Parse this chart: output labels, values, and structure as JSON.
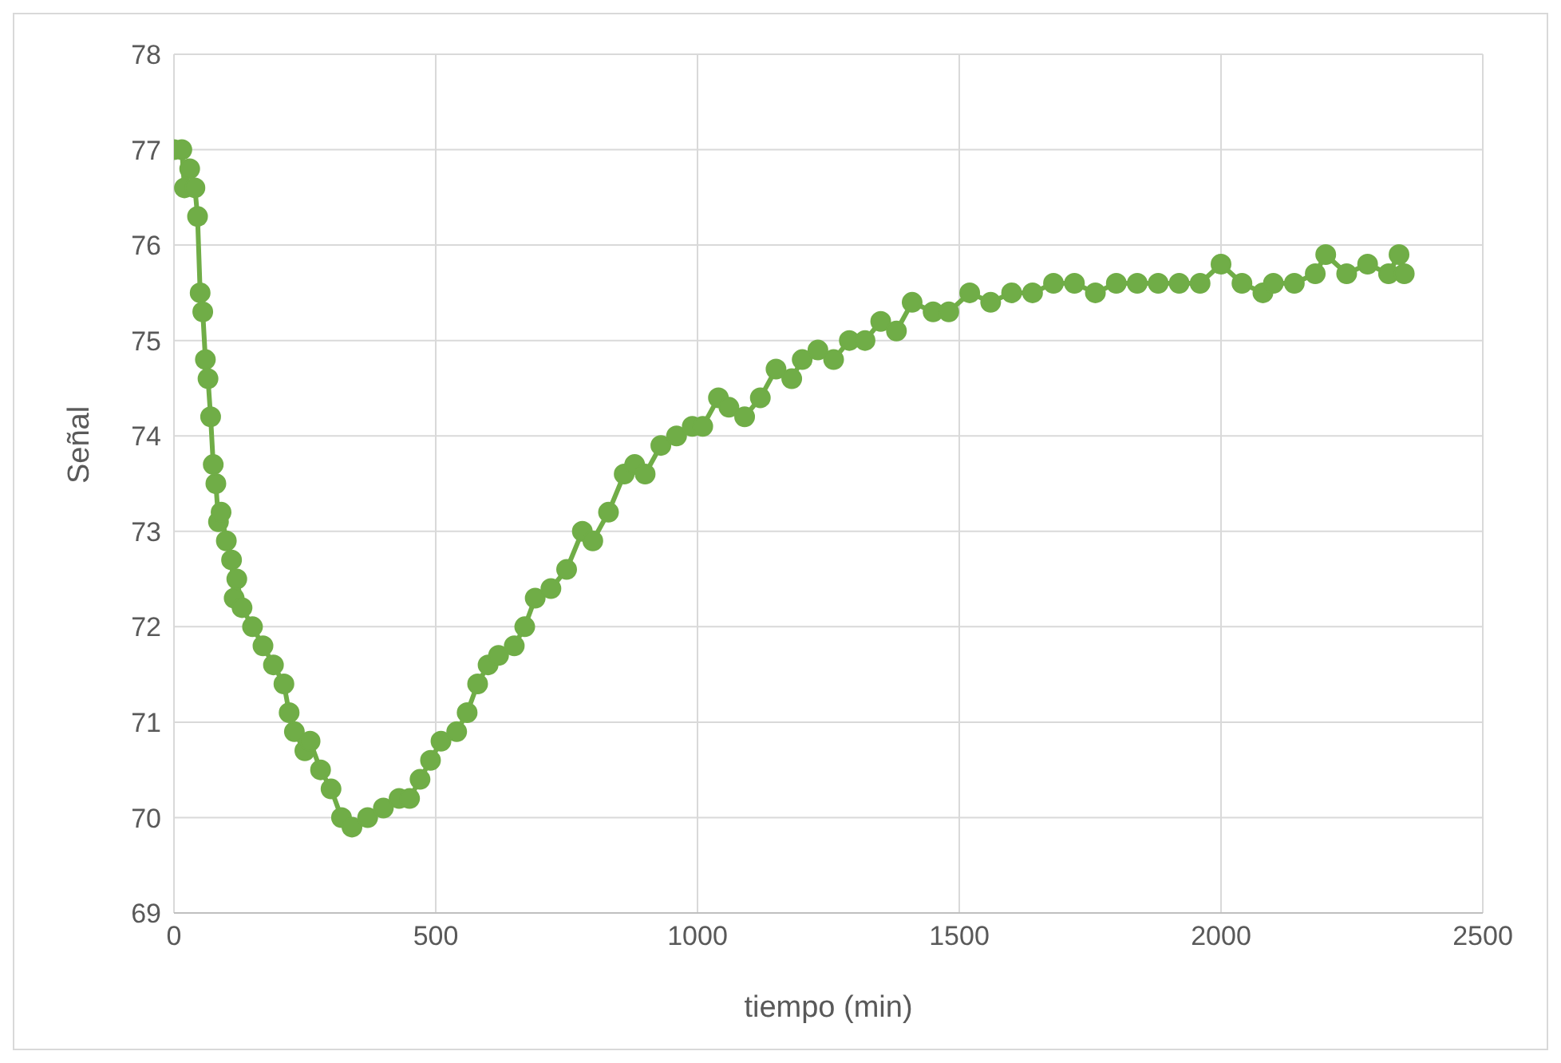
{
  "chart_data": {
    "type": "line",
    "xlabel": "tiempo (min)",
    "ylabel": "Señal",
    "marker": "circle",
    "line_style": "solid",
    "grid": true,
    "legend": false,
    "xlim": [
      0,
      2500
    ],
    "xticks": [
      0,
      500,
      1000,
      1500,
      2000,
      2500
    ],
    "ylim": [
      69,
      78
    ],
    "yticks": [
      69,
      70,
      71,
      72,
      73,
      74,
      75,
      76,
      77,
      78
    ],
    "x": [
      0,
      15,
      20,
      30,
      40,
      45,
      50,
      55,
      60,
      65,
      70,
      75,
      80,
      85,
      90,
      100,
      110,
      115,
      120,
      130,
      150,
      170,
      190,
      210,
      220,
      230,
      250,
      260,
      280,
      300,
      320,
      340,
      370,
      400,
      430,
      450,
      470,
      490,
      510,
      540,
      560,
      580,
      600,
      620,
      650,
      670,
      690,
      720,
      750,
      780,
      800,
      830,
      860,
      880,
      900,
      930,
      960,
      990,
      1010,
      1040,
      1060,
      1090,
      1120,
      1150,
      1180,
      1200,
      1230,
      1260,
      1290,
      1320,
      1350,
      1380,
      1410,
      1450,
      1480,
      1520,
      1560,
      1600,
      1640,
      1680,
      1720,
      1760,
      1800,
      1840,
      1880,
      1920,
      1960,
      2000,
      2040,
      2080,
      2100,
      2140,
      2180,
      2200,
      2240,
      2280,
      2320,
      2340,
      2350
    ],
    "series": [
      {
        "color": "#70ad47",
        "values": [
          77,
          77,
          76.6,
          76.8,
          76.6,
          76.3,
          75.5,
          75.3,
          74.8,
          74.6,
          74.2,
          73.7,
          73.5,
          73.1,
          73.2,
          72.9,
          72.7,
          72.3,
          72.5,
          72.2,
          72.0,
          71.8,
          71.6,
          71.4,
          71.1,
          70.9,
          70.7,
          70.8,
          70.5,
          70.3,
          70.0,
          69.9,
          70.0,
          70.1,
          70.2,
          70.2,
          70.4,
          70.6,
          70.8,
          70.9,
          71.1,
          71.4,
          71.6,
          71.7,
          71.8,
          72.0,
          72.3,
          72.4,
          72.6,
          73.0,
          72.9,
          73.2,
          73.6,
          73.7,
          73.6,
          73.9,
          74.0,
          74.1,
          74.1,
          74.4,
          74.3,
          74.2,
          74.4,
          74.7,
          74.6,
          74.8,
          74.9,
          74.8,
          75.0,
          75.0,
          75.2,
          75.1,
          75.4,
          75.3,
          75.3,
          75.5,
          75.4,
          75.5,
          75.5,
          75.6,
          75.6,
          75.5,
          75.6,
          75.6,
          75.6,
          75.6,
          75.6,
          75.8,
          75.6,
          75.5,
          75.6,
          75.6,
          75.7,
          75.9,
          75.7,
          75.8,
          75.7,
          75.9,
          75.7
        ]
      }
    ]
  }
}
